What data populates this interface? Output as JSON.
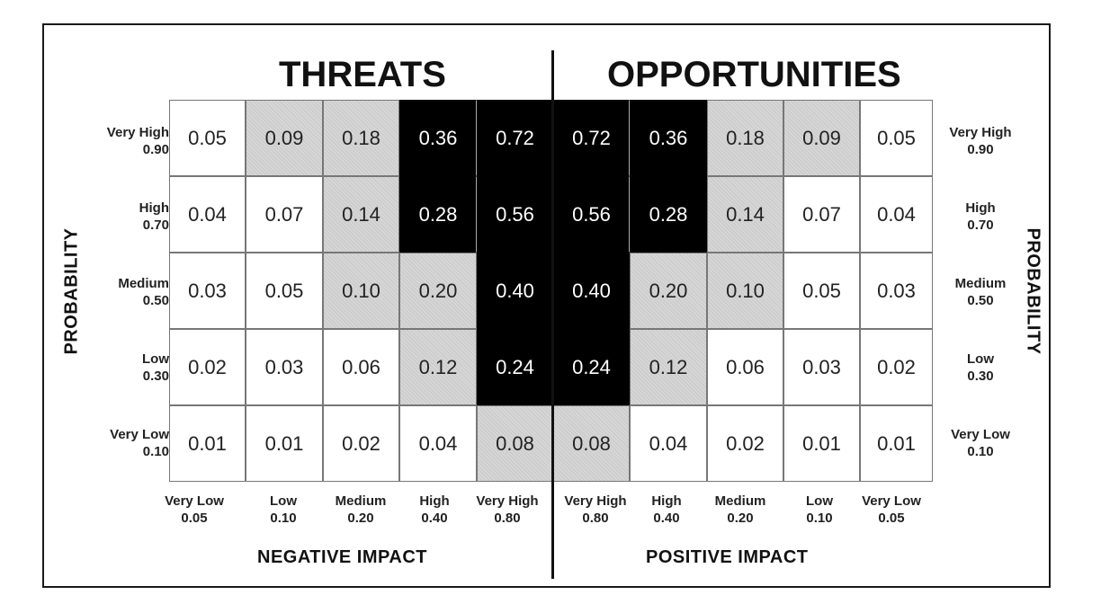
{
  "titles": {
    "threats": "THREATS",
    "opportunities": "OPPORTUNITIES"
  },
  "axes": {
    "probability_left": "PROBABILITY",
    "probability_right": "PROBABILITY",
    "negative_impact": "NEGATIVE  IMPACT",
    "positive_impact": "POSITIVE  IMPACT"
  },
  "rows": [
    {
      "label": "Very High",
      "value": "0.90"
    },
    {
      "label": "High",
      "value": "0.70"
    },
    {
      "label": "Medium",
      "value": "0.50"
    },
    {
      "label": "Low",
      "value": "0.30"
    },
    {
      "label": "Very Low",
      "value": "0.10"
    }
  ],
  "columns": [
    {
      "label": "Very Low",
      "value": "0.05"
    },
    {
      "label": "Low",
      "value": "0.10"
    },
    {
      "label": "Medium",
      "value": "0.20"
    },
    {
      "label": "High",
      "value": "0.40"
    },
    {
      "label": "Very High",
      "value": "0.80"
    },
    {
      "label": "Very High",
      "value": "0.80"
    },
    {
      "label": "High",
      "value": "0.40"
    },
    {
      "label": "Medium",
      "value": "0.20"
    },
    {
      "label": "Low",
      "value": "0.10"
    },
    {
      "label": "Very Low",
      "value": "0.05"
    }
  ],
  "cells": [
    [
      "0.05",
      "0.09",
      "0.18",
      "0.36",
      "0.72",
      "0.72",
      "0.36",
      "0.18",
      "0.09",
      "0.05"
    ],
    [
      "0.04",
      "0.07",
      "0.14",
      "0.28",
      "0.56",
      "0.56",
      "0.28",
      "0.14",
      "0.07",
      "0.04"
    ],
    [
      "0.03",
      "0.05",
      "0.10",
      "0.20",
      "0.40",
      "0.40",
      "0.20",
      "0.10",
      "0.05",
      "0.03"
    ],
    [
      "0.02",
      "0.03",
      "0.06",
      "0.12",
      "0.24",
      "0.24",
      "0.12",
      "0.06",
      "0.03",
      "0.02"
    ],
    [
      "0.01",
      "0.01",
      "0.02",
      "0.04",
      "0.08",
      "0.08",
      "0.04",
      "0.02",
      "0.01",
      "0.01"
    ]
  ],
  "shading": [
    [
      "w",
      "g",
      "g",
      "b",
      "b",
      "b",
      "b",
      "g",
      "g",
      "w"
    ],
    [
      "w",
      "w",
      "g",
      "b",
      "b",
      "b",
      "b",
      "g",
      "w",
      "w"
    ],
    [
      "w",
      "w",
      "g",
      "g",
      "b",
      "b",
      "g",
      "g",
      "w",
      "w"
    ],
    [
      "w",
      "w",
      "w",
      "g",
      "b",
      "b",
      "g",
      "w",
      "w",
      "w"
    ],
    [
      "w",
      "w",
      "w",
      "w",
      "g",
      "g",
      "w",
      "w",
      "w",
      "w"
    ]
  ]
}
